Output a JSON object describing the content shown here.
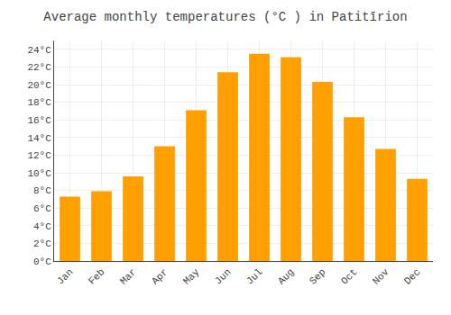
{
  "chart_data": {
    "type": "bar",
    "title": "Average monthly temperatures (°C ) in Patitīrion",
    "categories": [
      "Jan",
      "Feb",
      "Mar",
      "Apr",
      "May",
      "Jun",
      "Jul",
      "Aug",
      "Sep",
      "Oct",
      "Nov",
      "Dec"
    ],
    "values": [
      7.3,
      7.9,
      9.6,
      13.0,
      17.1,
      21.4,
      23.5,
      23.1,
      20.3,
      16.3,
      12.7,
      9.3
    ],
    "color": "#FFA000",
    "ylim": [
      0,
      25
    ],
    "yticks": [
      {
        "value": 0,
        "label": "0°C"
      },
      {
        "value": 2,
        "label": "2°C"
      },
      {
        "value": 4,
        "label": "4°C"
      },
      {
        "value": 6,
        "label": "6°C"
      },
      {
        "value": 8,
        "label": "8°C"
      },
      {
        "value": 10,
        "label": "10°C"
      },
      {
        "value": 12,
        "label": "12°C"
      },
      {
        "value": 14,
        "label": "14°C"
      },
      {
        "value": 16,
        "label": "16°C"
      },
      {
        "value": 18,
        "label": "18°C"
      },
      {
        "value": 20,
        "label": "20°C"
      },
      {
        "value": 22,
        "label": "22°C"
      },
      {
        "value": 24,
        "label": "24°C"
      }
    ],
    "grid": true
  }
}
